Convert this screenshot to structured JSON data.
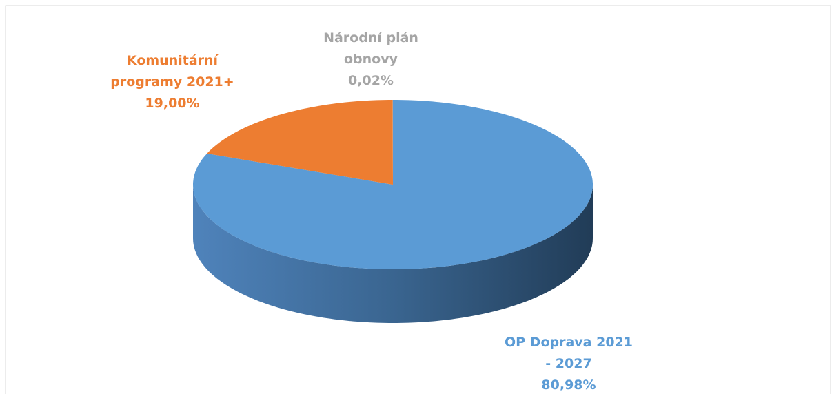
{
  "chart_data": {
    "type": "pie3d",
    "categories": [
      "OP Doprava 2021 - 2027",
      "Komunitární programy 2021+",
      "Národní plán obnovy"
    ],
    "values": [
      80.98,
      19.0,
      0.02
    ],
    "value_labels": [
      "80,98%",
      "19,00%",
      "0,02%"
    ],
    "colors": [
      "#5b9bd5",
      "#ed7d31",
      "#a5a5a5"
    ]
  }
}
